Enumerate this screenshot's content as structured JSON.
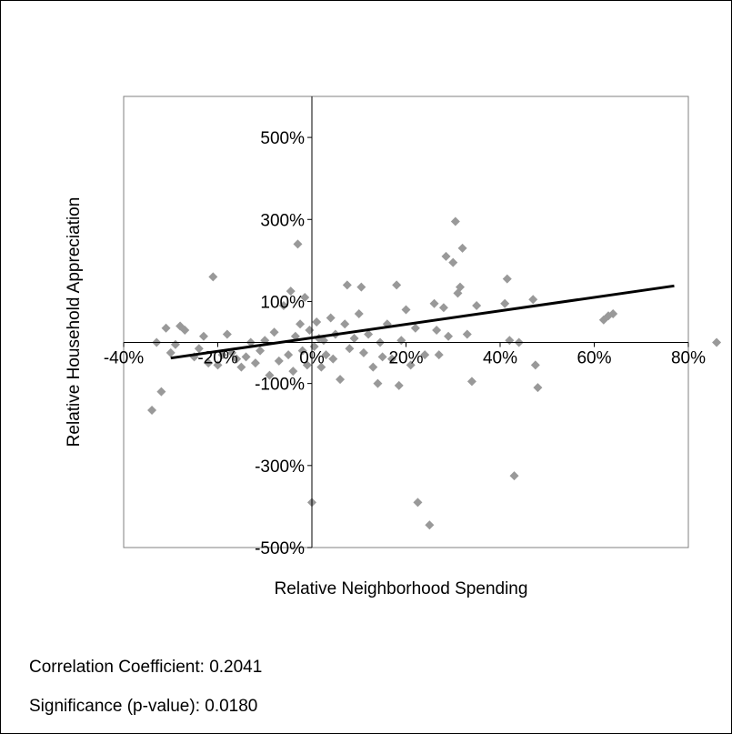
{
  "chart_data": {
    "type": "scatter",
    "title": "",
    "xlabel": "Relative Neighborhood Spending",
    "ylabel": "Relative Household Appreciation",
    "xlim": [
      -0.4,
      0.8
    ],
    "ylim": [
      -5.0,
      6.0
    ],
    "x_ticks": [
      -0.4,
      -0.2,
      0.0,
      0.2,
      0.4,
      0.6,
      0.8
    ],
    "x_tick_labels": [
      "-40%",
      "-20%",
      "0%",
      "20%",
      "40%",
      "60%",
      "80%"
    ],
    "y_ticks": [
      -5.0,
      -3.0,
      -1.0,
      1.0,
      3.0,
      5.0
    ],
    "y_tick_labels": [
      "-500%",
      "-300%",
      "-100%",
      "100%",
      "300%",
      "500%"
    ],
    "grid": false,
    "legend": "none",
    "marker_color": "#999999",
    "trendline_color": "#000000",
    "trendline": {
      "x": [
        -0.3,
        0.77
      ],
      "y": [
        -0.38,
        1.38
      ]
    },
    "points": [
      [
        -0.34,
        -1.65
      ],
      [
        -0.33,
        0.0
      ],
      [
        -0.32,
        -1.2
      ],
      [
        -0.31,
        0.35
      ],
      [
        -0.3,
        -0.25
      ],
      [
        -0.29,
        -0.05
      ],
      [
        -0.28,
        0.4
      ],
      [
        -0.27,
        0.3
      ],
      [
        -0.25,
        -0.35
      ],
      [
        -0.24,
        -0.15
      ],
      [
        -0.23,
        0.15
      ],
      [
        -0.22,
        -0.5
      ],
      [
        -0.21,
        1.6
      ],
      [
        -0.2,
        -0.55
      ],
      [
        -0.19,
        -0.3
      ],
      [
        -0.18,
        0.2
      ],
      [
        -0.17,
        -0.25
      ],
      [
        -0.16,
        -0.4
      ],
      [
        -0.15,
        -0.6
      ],
      [
        -0.14,
        -0.35
      ],
      [
        -0.13,
        0.0
      ],
      [
        -0.12,
        -0.5
      ],
      [
        -0.11,
        -0.2
      ],
      [
        -0.1,
        0.05
      ],
      [
        -0.09,
        -0.8
      ],
      [
        -0.08,
        0.25
      ],
      [
        -0.07,
        -0.45
      ],
      [
        -0.06,
        0.9
      ],
      [
        -0.05,
        -0.3
      ],
      [
        -0.045,
        1.25
      ],
      [
        -0.04,
        -0.7
      ],
      [
        -0.035,
        0.15
      ],
      [
        -0.03,
        2.4
      ],
      [
        -0.025,
        0.45
      ],
      [
        -0.02,
        -0.2
      ],
      [
        -0.015,
        1.1
      ],
      [
        -0.01,
        -0.55
      ],
      [
        -0.005,
        0.3
      ],
      [
        0.0,
        -3.9
      ],
      [
        0.005,
        -0.1
      ],
      [
        0.01,
        0.5
      ],
      [
        0.015,
        0.1
      ],
      [
        0.02,
        -0.6
      ],
      [
        0.025,
        0.05
      ],
      [
        0.03,
        -0.3
      ],
      [
        0.04,
        0.6
      ],
      [
        0.045,
        -0.4
      ],
      [
        0.05,
        0.2
      ],
      [
        0.06,
        -0.9
      ],
      [
        0.07,
        0.45
      ],
      [
        0.075,
        1.4
      ],
      [
        0.08,
        -0.15
      ],
      [
        0.09,
        0.1
      ],
      [
        0.1,
        0.7
      ],
      [
        0.105,
        1.35
      ],
      [
        0.11,
        -0.25
      ],
      [
        0.12,
        0.2
      ],
      [
        0.13,
        -0.6
      ],
      [
        0.14,
        -1.0
      ],
      [
        0.145,
        0.0
      ],
      [
        0.15,
        -0.35
      ],
      [
        0.16,
        0.45
      ],
      [
        0.17,
        -0.4
      ],
      [
        0.18,
        1.4
      ],
      [
        0.185,
        -1.05
      ],
      [
        0.19,
        0.05
      ],
      [
        0.2,
        0.8
      ],
      [
        0.21,
        -0.55
      ],
      [
        0.22,
        0.35
      ],
      [
        0.225,
        -3.9
      ],
      [
        0.24,
        -0.3
      ],
      [
        0.25,
        -4.45
      ],
      [
        0.26,
        0.95
      ],
      [
        0.265,
        0.3
      ],
      [
        0.27,
        -0.3
      ],
      [
        0.28,
        0.85
      ],
      [
        0.285,
        2.1
      ],
      [
        0.29,
        0.15
      ],
      [
        0.3,
        1.95
      ],
      [
        0.305,
        2.95
      ],
      [
        0.31,
        1.2
      ],
      [
        0.315,
        1.35
      ],
      [
        0.32,
        2.3
      ],
      [
        0.33,
        0.2
      ],
      [
        0.34,
        -0.95
      ],
      [
        0.35,
        0.9
      ],
      [
        0.41,
        0.95
      ],
      [
        0.415,
        1.55
      ],
      [
        0.42,
        0.05
      ],
      [
        0.43,
        -3.25
      ],
      [
        0.44,
        0.0
      ],
      [
        0.47,
        1.05
      ],
      [
        0.475,
        -0.55
      ],
      [
        0.48,
        -1.1
      ],
      [
        0.62,
        0.55
      ],
      [
        0.63,
        0.65
      ],
      [
        0.64,
        0.7
      ],
      [
        0.86,
        0.0
      ]
    ]
  },
  "stats": {
    "correlation": "Correlation Coefficient: 0.2041",
    "significance": "Significance (p-value): 0.0180"
  }
}
